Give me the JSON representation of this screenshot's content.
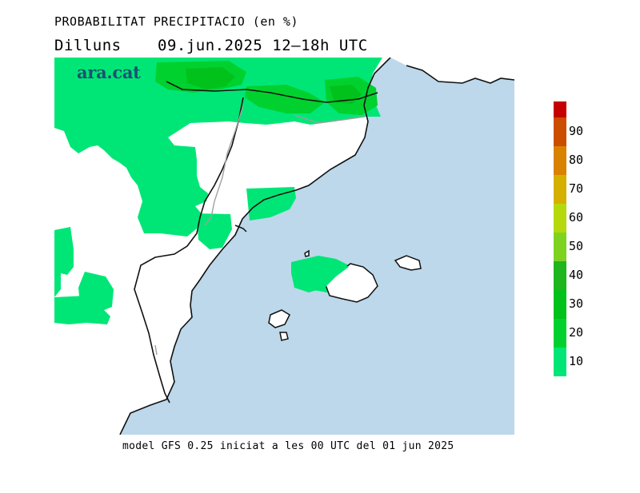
{
  "header": {
    "title": "PROBABILITAT PRECIPITACIO (en %)",
    "day": "Dilluns",
    "date_range": "09.jun.2025 12–18h UTC"
  },
  "brand": "ara.cat",
  "footer": "model GFS 0.25 iniciat a les 00 UTC del 01 jun 2025",
  "map": {
    "sea_color": "#bcd8ea",
    "land_color": "#ffffff",
    "coast_color": "#111111",
    "river_color": "#a0a0a0"
  },
  "legend": {
    "levels": [
      {
        "label": "10",
        "color": "#00e676"
      },
      {
        "label": "20",
        "color": "#00d12e"
      },
      {
        "label": "30",
        "color": "#00c21a"
      },
      {
        "label": "40",
        "color": "#1fb51f"
      },
      {
        "label": "50",
        "color": "#7ed321"
      },
      {
        "label": "60",
        "color": "#b4d90c"
      },
      {
        "label": "70",
        "color": "#d6b000"
      },
      {
        "label": "80",
        "color": "#d88200"
      },
      {
        "label": "90",
        "color": "#cc4c00"
      }
    ],
    "top_color": "#c40000"
  }
}
